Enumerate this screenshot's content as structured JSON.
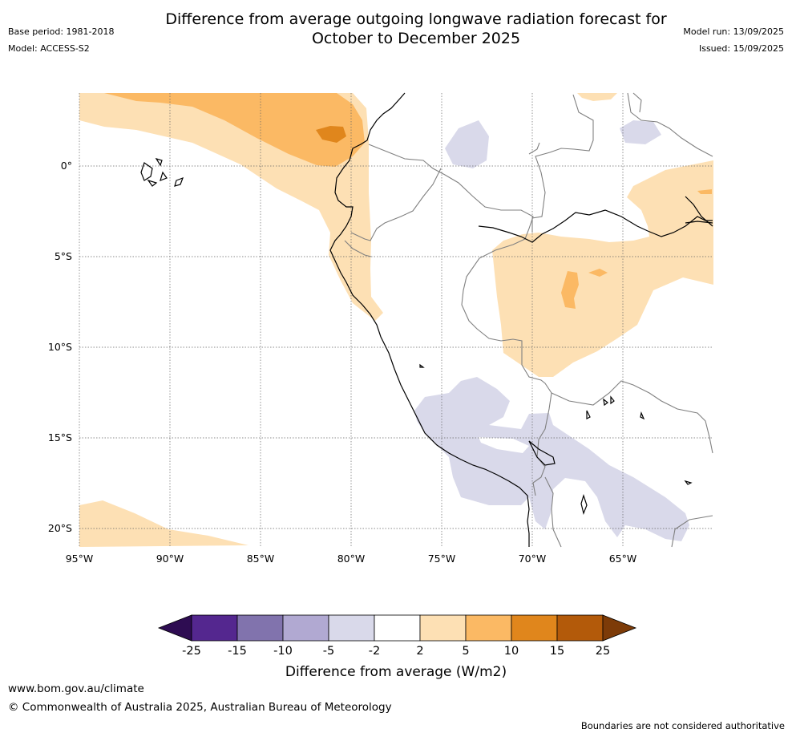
{
  "title": "Difference from average outgoing longwave radiation forecast for\nOctober to December 2025",
  "meta_left": {
    "base_period": "Base period: 1981-2018",
    "model": "Model: ACCESS-S2"
  },
  "meta_right": {
    "model_run": "Model run: 13/09/2025",
    "issued": "Issued: 15/09/2025"
  },
  "map": {
    "lat_labels": [
      "0°",
      "5°S",
      "10°S",
      "15°S",
      "20°S"
    ],
    "lon_labels": [
      "95°W",
      "90°W",
      "85°W",
      "80°W",
      "75°W",
      "70°W",
      "65°W"
    ],
    "anomaly_colors": {
      "light_orange": "#fde0b4",
      "orange": "#fbb964",
      "dark_orange": "#e0861c",
      "light_purple": "#d9d9ea",
      "coastline": "#000000",
      "border": "#808080"
    }
  },
  "colorbar": {
    "ticks": [
      "-25",
      "-15",
      "-10",
      "-5",
      "-2",
      "2",
      "5",
      "10",
      "15",
      "25"
    ],
    "colors": [
      "#2e0c52",
      "#54278f",
      "#8173ad",
      "#b1a9d2",
      "#d9d9ea",
      "#ffffff",
      "#fde0b4",
      "#fbb964",
      "#e0861c",
      "#b35a0a",
      "#7d3b08"
    ],
    "title": "Difference from average (W/m2)"
  },
  "footer": {
    "url": "www.bom.gov.au/climate",
    "copyright": "© Commonwealth of Australia 2025, Australian Bureau of Meteorology",
    "note": "Boundaries are not considered authoritative"
  }
}
